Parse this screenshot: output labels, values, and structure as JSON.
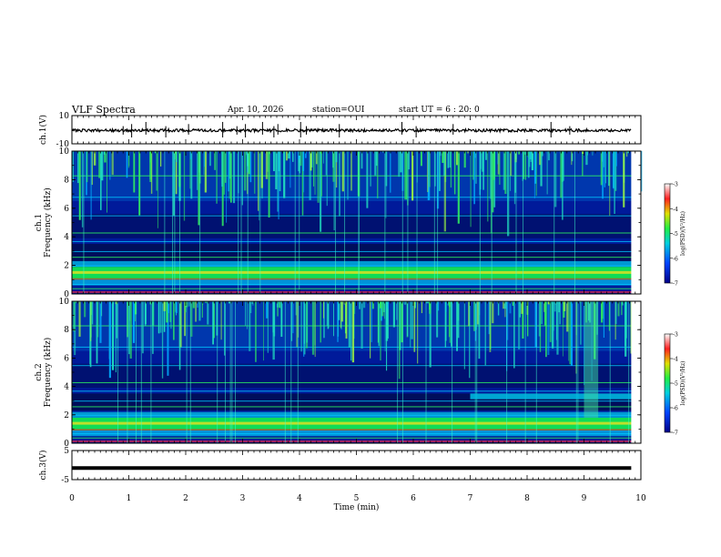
{
  "header": {
    "title": "VLF Spectra",
    "date": "Apr. 10, 2026",
    "station": "station=OUI",
    "start_ut": "start  UT =   6 : 20: 0"
  },
  "chart_data": [
    {
      "type": "line",
      "panel": "ch1-waveform",
      "ylabel": "ch.1(V)",
      "ylim": [
        -10,
        10
      ],
      "yticks": [
        "10",
        "-10"
      ],
      "series": [
        {
          "name": "ch.1",
          "x_range": [
            0,
            9.83
          ],
          "approx_mean": -0.5,
          "approx_noise_amplitude": 1.0,
          "spikes_at_min": [
            0.9,
            1.05,
            1.3,
            1.65,
            2.05,
            2.65,
            2.9,
            3.05,
            3.35,
            3.55,
            3.62,
            4.02,
            4.12,
            4.7,
            5.8,
            6.05,
            6.7,
            8.42,
            8.75
          ]
        }
      ]
    },
    {
      "type": "heatmap",
      "panel": "ch1-spectrogram",
      "ylabel": "ch.1\nFrequency (kHz)",
      "ylim": [
        0,
        10
      ],
      "yticks": [
        "0",
        "2",
        "4",
        "6",
        "8",
        "10"
      ],
      "x_range_min": [
        0,
        9.83
      ],
      "description_bands_khz": {
        "strong_band": [
          1.0,
          1.9
        ],
        "line_peaks": [
          1.3,
          1.6,
          2.6,
          3.7,
          5.5,
          6.8
        ]
      },
      "colorbar": {
        "label": "log(PSD)(V²/Hz)",
        "range": [
          -7,
          -3
        ],
        "ticks": [
          "-3",
          "-4",
          "-5",
          "-6",
          "-7"
        ]
      }
    },
    {
      "type": "heatmap",
      "panel": "ch2-spectrogram",
      "ylabel": "ch.2\nFrequency (kHz)",
      "ylim": [
        0,
        10
      ],
      "yticks": [
        "0",
        "2",
        "4",
        "6",
        "8",
        "10"
      ],
      "x_range_min": [
        0,
        9.83
      ],
      "description_bands_khz": {
        "strong_band": [
          0.9,
          1.8
        ],
        "enhanced_band_after_7min": [
          3.1,
          3.5
        ]
      },
      "colorbar": {
        "label": "log(PSD)(V²/Hz)",
        "range": [
          -7,
          -3
        ],
        "ticks": [
          "-3",
          "-4",
          "-5",
          "-6",
          "-7"
        ]
      }
    },
    {
      "type": "line",
      "panel": "ch3-waveform",
      "ylabel": "ch.3(V)",
      "ylim": [
        -5,
        5
      ],
      "yticks": [
        "5",
        "-5"
      ],
      "series": [
        {
          "name": "ch.3",
          "x_range": [
            0,
            9.83
          ],
          "approx_value": -1.0
        }
      ]
    }
  ],
  "x_axis": {
    "label": "Time  (min)",
    "range": [
      0,
      10
    ],
    "ticks": [
      "0",
      "1",
      "2",
      "3",
      "4",
      "5",
      "6",
      "7",
      "8",
      "9",
      "10"
    ]
  }
}
